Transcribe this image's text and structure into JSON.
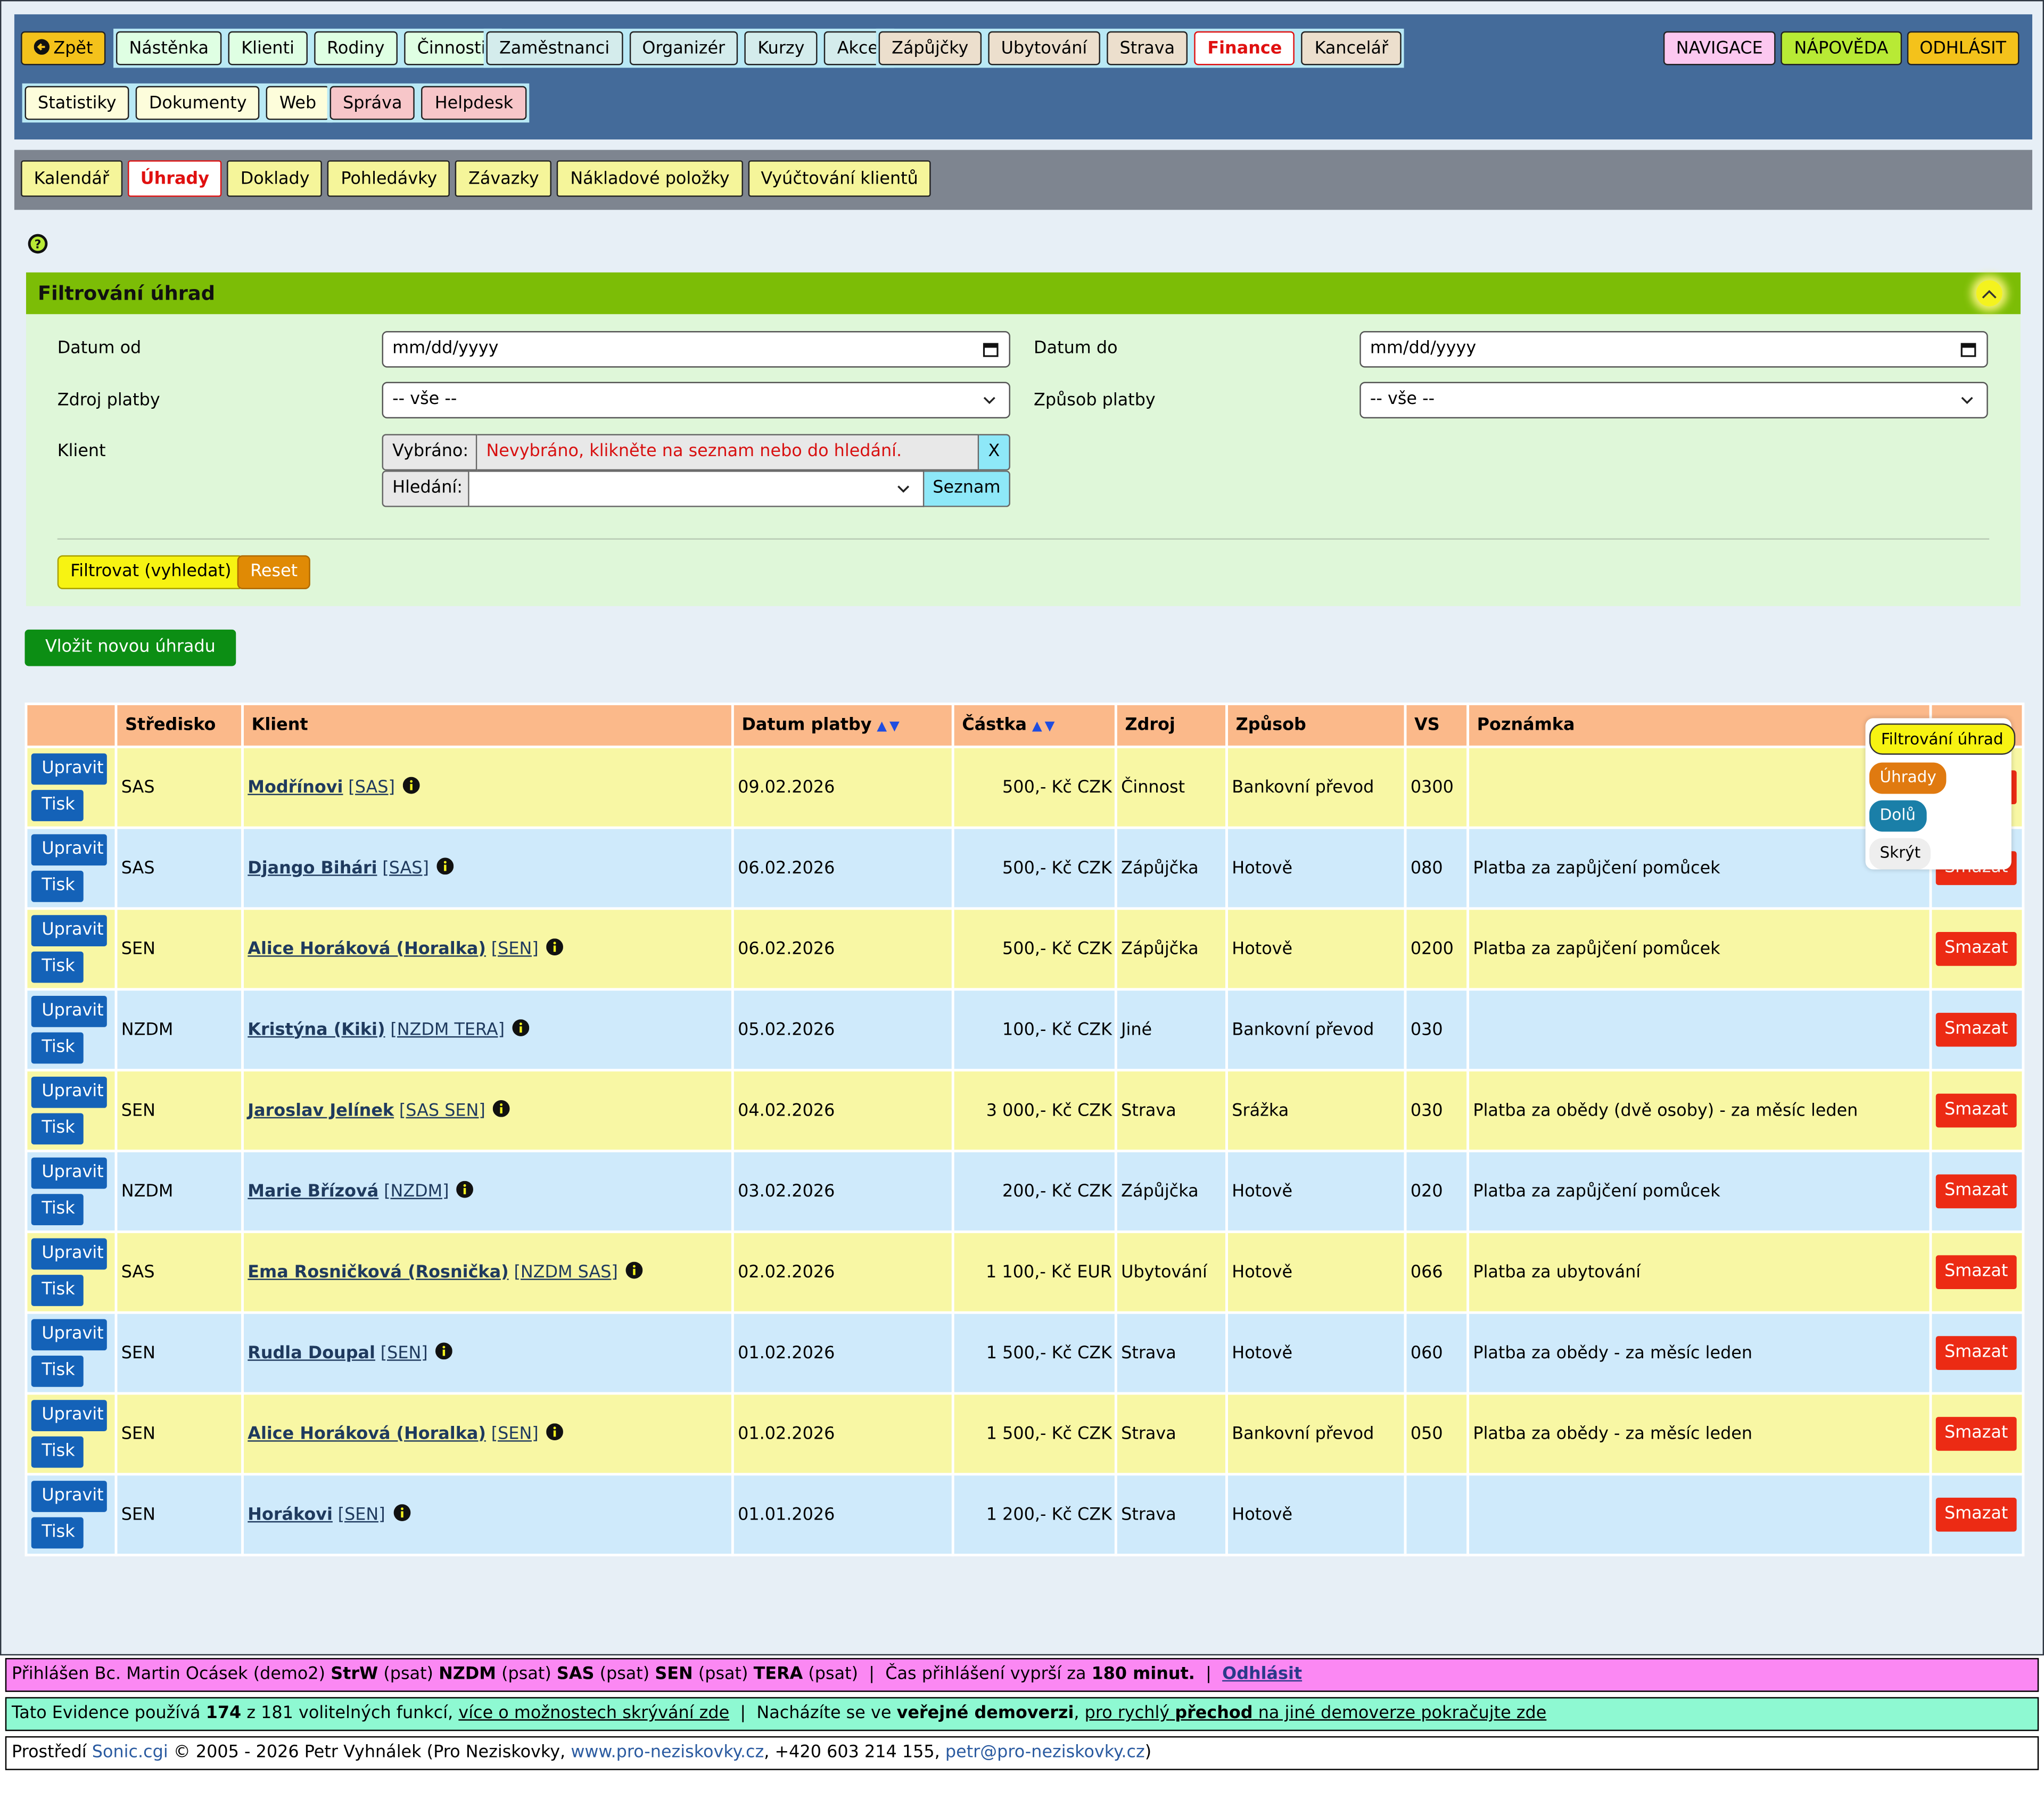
{
  "nav": {
    "back": "Zpět",
    "group1": [
      "Nástěnka",
      "Klienti",
      "Rodiny",
      "Činnosti"
    ],
    "group2": [
      "Zaměstnanci",
      "Organizér",
      "Kurzy",
      "Akce"
    ],
    "group3": [
      "Zápůjčky",
      "Ubytování",
      "Strava",
      "Finance",
      "Kancelář"
    ],
    "active": "Finance",
    "row2_group1": [
      "Statistiky",
      "Dokumenty",
      "Web"
    ],
    "row2_group2": [
      "Správa",
      "Helpdesk"
    ],
    "right": [
      "NAVIGACE",
      "NÁPOVĚDA",
      "ODHLÁSIT"
    ]
  },
  "subnav": {
    "items": [
      "Kalendář",
      "Úhrady",
      "Doklady",
      "Pohledávky",
      "Závazky",
      "Nákladové položky",
      "Vyúčtování klientů"
    ],
    "active": "Úhrady"
  },
  "filter": {
    "title": "Filtrování úhrad",
    "date_from_label": "Datum od",
    "date_from_value": "mm/dd/yyyy",
    "date_to_label": "Datum do",
    "date_to_value": "mm/dd/yyyy",
    "source_label": "Zdroj platby",
    "source_value": "-- vše --",
    "method_label": "Způsob platby",
    "method_value": "-- vše --",
    "client_label": "Klient",
    "selected_label": "Vybráno:",
    "selected_value": "Nevybráno, klikněte na seznam nebo do hledání.",
    "clear_button": "X",
    "search_label": "Hledání:",
    "list_button": "Seznam",
    "filter_button": "Filtrovat (vyhledat)",
    "reset_button": "Reset"
  },
  "new_button": "Vložit novou úhradu",
  "table": {
    "headers": {
      "stredisko": "Středisko",
      "klient": "Klient",
      "datum": "Datum platby",
      "castka": "Částka",
      "zdroj": "Zdroj",
      "zpusob": "Způsob",
      "vs": "VS",
      "poznamka": "Poznámka"
    },
    "sort_arrows": "▲▼",
    "edit_label": "Upravit",
    "print_label": "Tisk",
    "delete_label": "Smazat",
    "rows": [
      {
        "stredisko": "SAS",
        "name": "Modřínovi",
        "tag": "[SAS]",
        "datum": "09.02.2026",
        "castka": "500,- Kč CZK",
        "zdroj": "Činnost",
        "zpusob": "Bankovní převod",
        "vs": "0300",
        "poznamka": ""
      },
      {
        "stredisko": "SAS",
        "name": "Django Bihári",
        "tag": "[SAS]",
        "datum": "06.02.2026",
        "castka": "500,- Kč CZK",
        "zdroj": "Zápůjčka",
        "zpusob": "Hotově",
        "vs": "080",
        "poznamka": "Platba za zapůjčení pomůcek"
      },
      {
        "stredisko": "SEN",
        "name": "Alice Horáková (Horalka)",
        "tag": "[SEN]",
        "datum": "06.02.2026",
        "castka": "500,- Kč CZK",
        "zdroj": "Zápůjčka",
        "zpusob": "Hotově",
        "vs": "0200",
        "poznamka": "Platba za zapůjčení pomůcek"
      },
      {
        "stredisko": "NZDM",
        "name": "Kristýna (Kiki)",
        "tag": "[NZDM TERA]",
        "datum": "05.02.2026",
        "castka": "100,- Kč CZK",
        "zdroj": "Jiné",
        "zpusob": "Bankovní převod",
        "vs": "030",
        "poznamka": ""
      },
      {
        "stredisko": "SEN",
        "name": "Jaroslav Jelínek",
        "tag": "[SAS SEN]",
        "datum": "04.02.2026",
        "castka": "3 000,- Kč CZK",
        "zdroj": "Strava",
        "zpusob": "Srážka",
        "vs": "030",
        "poznamka": "Platba za obědy (dvě osoby) - za měsíc leden"
      },
      {
        "stredisko": "NZDM",
        "name": "Marie Břízová",
        "tag": "[NZDM]",
        "datum": "03.02.2026",
        "castka": "200,- Kč CZK",
        "zdroj": "Zápůjčka",
        "zpusob": "Hotově",
        "vs": "020",
        "poznamka": "Platba za zapůjčení pomůcek"
      },
      {
        "stredisko": "SAS",
        "name": "Ema Rosničková (Rosnička)",
        "tag": "[NZDM SAS]",
        "datum": "02.02.2026",
        "castka": "1 100,- Kč EUR",
        "zdroj": "Ubytování",
        "zpusob": "Hotově",
        "vs": "066",
        "poznamka": "Platba za ubytování"
      },
      {
        "stredisko": "SEN",
        "name": "Rudla Doupal",
        "tag": "[SEN]",
        "datum": "01.02.2026",
        "castka": "1 500,- Kč CZK",
        "zdroj": "Strava",
        "zpusob": "Hotově",
        "vs": "060",
        "poznamka": "Platba za obědy - za měsíc leden"
      },
      {
        "stredisko": "SEN",
        "name": "Alice Horáková (Horalka)",
        "tag": "[SEN]",
        "datum": "01.02.2026",
        "castka": "1 500,- Kč CZK",
        "zdroj": "Strava",
        "zpusob": "Bankovní převod",
        "vs": "050",
        "poznamka": "Platba za obědy - za měsíc leden"
      },
      {
        "stredisko": "SEN",
        "name": "Horákovi",
        "tag": "[SEN]",
        "datum": "01.01.2026",
        "castka": "1 200,- Kč CZK",
        "zdroj": "Strava",
        "zpusob": "Hotově",
        "vs": "",
        "poznamka": ""
      }
    ]
  },
  "floating_menu": {
    "items": [
      "Filtrování úhrad",
      "Úhrady",
      "Dolů",
      "Skrýt"
    ],
    "colors": [
      "#f7f312",
      "#e07a10",
      "#1a7fa8",
      "#eeeeee"
    ]
  },
  "footer": {
    "login_prefix": "Přihlášen Bc. Martin Ocásek (demo2)",
    "roles": [
      {
        "code": "StrW",
        "perm": "(psat)"
      },
      {
        "code": "NZDM",
        "perm": "(psat)"
      },
      {
        "code": "SAS",
        "perm": "(psat)"
      },
      {
        "code": "SEN",
        "perm": "(psat)"
      },
      {
        "code": "TERA",
        "perm": "(psat)"
      }
    ],
    "sep": "|",
    "expire_text": "Čas přihlášení vyprší za",
    "expire_value": "180 minut.",
    "logout": "Odhlásit",
    "usage_prefix": "Tato Evidence používá",
    "usage_count": "174",
    "usage_suffix": "z 181 volitelných funkcí,",
    "usage_link": "více o možnostech skrývání zde",
    "demo_prefix": "Nacházíte se ve",
    "demo_bold": "veřejné demoverzi",
    "demo_link_pre": "pro rychlý",
    "demo_link_bold": "přechod",
    "demo_link_post": "na jiné demoverze pokračujte zde",
    "env_prefix": "Prostředí",
    "env_name": "Sonic.cgi",
    "copyright": "© 2005 - 2026 Petr Vyhnálek (Pro Neziskovky,",
    "web": "www.pro-neziskovky.cz",
    "phone": ", +420 603 214 155,",
    "email": "petr@pro-neziskovky.cz",
    "close": ")"
  }
}
